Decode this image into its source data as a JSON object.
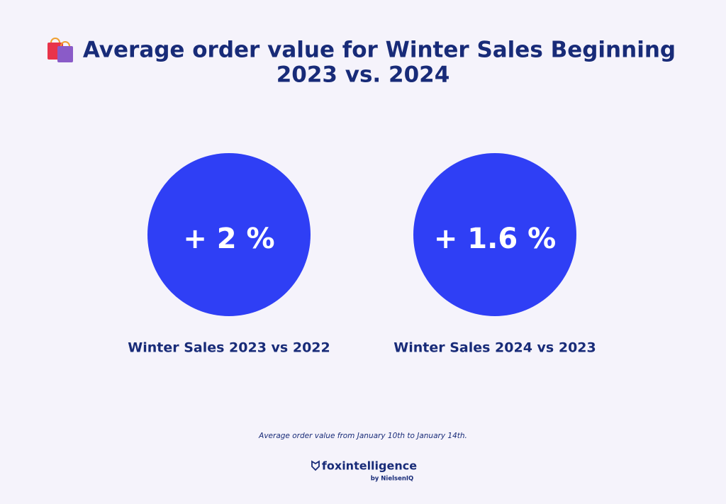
{
  "header": {
    "title_lines": [
      "Average order value for Winter Sales Beginning",
      "2023 vs. 2024"
    ]
  },
  "stats": [
    {
      "value": "+ 2 %",
      "label": "Winter Sales 2023 vs 2022"
    },
    {
      "value": "+ 1.6 %",
      "label": "Winter Sales 2024 vs 2023"
    }
  ],
  "footnote": "Average order value from January 10th to January 14th.",
  "brand": {
    "name": "foxintelligence",
    "tagline": "by NielsenIQ"
  }
}
